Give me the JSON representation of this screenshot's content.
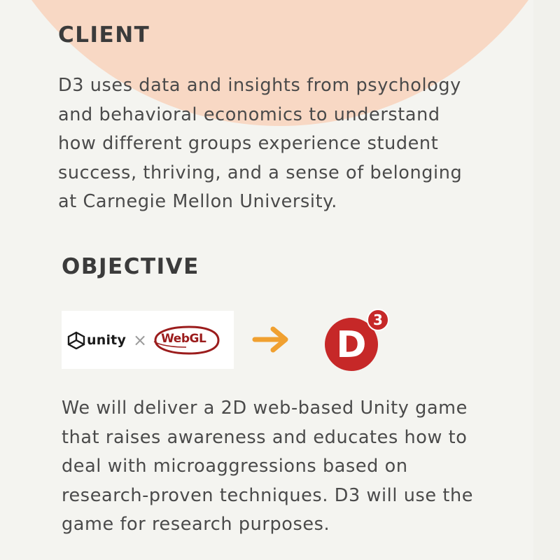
{
  "client": {
    "heading": "CLIENT",
    "lines": [
      "D3 uses data and insights from psychology",
      "and behavioral economics to understand",
      "how different groups experience student",
      "success, thriving, and a sense of belonging",
      "at Carnegie Mellon University."
    ]
  },
  "objective": {
    "heading": "OBJECTIVE",
    "logos": {
      "unity_label": "unity",
      "times": "×",
      "webgl_label": "WebGL",
      "d3_letter": "D",
      "d3_superscript": "3"
    },
    "lines": [
      "We will deliver a 2D web-based Unity game",
      "that raises awareness and educates how to",
      "deal with microaggressions based on",
      "research-proven techniques. D3 will use the",
      "game for research purposes."
    ]
  },
  "colors": {
    "background": "#f4f4f0",
    "peach": "#f8d8c4",
    "heading": "#3b3b3b",
    "body_text": "#4a4a4a",
    "arrow": "#f0a030",
    "d3_red": "#c62828",
    "webgl_red": "#9b1c1c"
  },
  "icons": [
    "unity-logo-icon",
    "webgl-logo-icon",
    "arrow-right-icon",
    "d3-logo-icon"
  ]
}
